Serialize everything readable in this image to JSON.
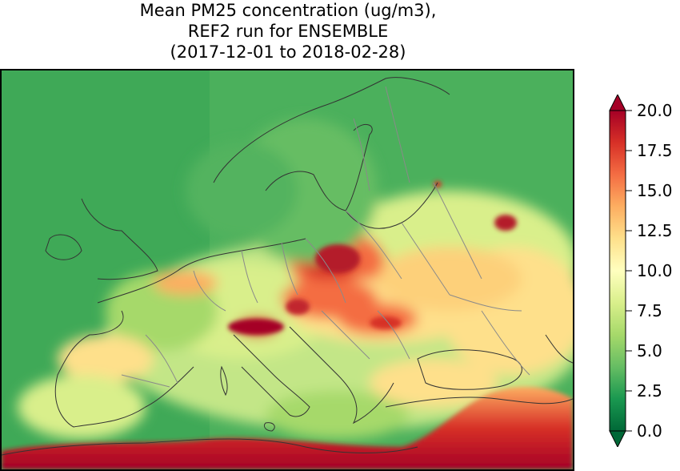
{
  "title": {
    "line1": "Mean PM25 concentration (ug/m3),",
    "line2": "REF2 run for ENSEMBLE",
    "line3": "(2017-12-01 to 2018-02-28)"
  },
  "colorbar": {
    "min": 0.0,
    "max": 20.0,
    "extend": "both",
    "colormap": [
      "#006837",
      "#1a9850",
      "#66bd63",
      "#a6d96a",
      "#d9ef8b",
      "#ffffbf",
      "#fee08b",
      "#fdae61",
      "#f46d43",
      "#d73027",
      "#a50026"
    ],
    "ticks": [
      "0.0",
      "2.5",
      "5.0",
      "7.5",
      "10.0",
      "12.5",
      "15.0",
      "17.5",
      "20.0"
    ]
  }
}
